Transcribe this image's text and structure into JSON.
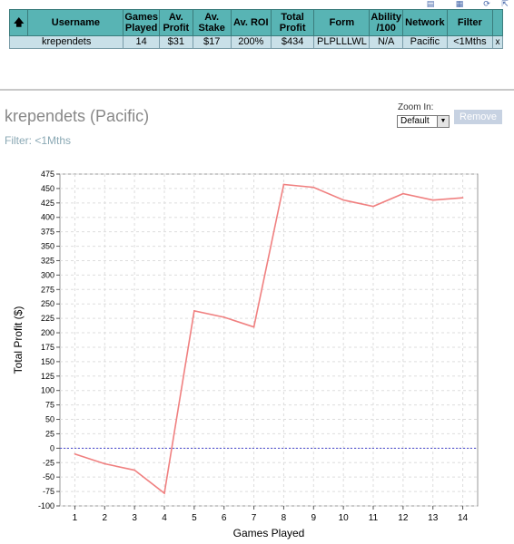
{
  "table": {
    "headers": [
      "",
      "Username",
      "Games Played",
      "Av. Profit",
      "Av. Stake",
      "Av. ROI",
      "Total Profit",
      "Form",
      "Ability /100",
      "Network",
      "Filter",
      ""
    ],
    "row": {
      "username": "krependets",
      "games_played": "14",
      "av_profit": "$31",
      "av_stake": "$17",
      "av_roi": "200%",
      "total_profit": "$434",
      "form": "PLPLLLWL",
      "ability": "N/A",
      "network": "Pacific",
      "filter": "<1Mths",
      "remove": "x"
    }
  },
  "player": {
    "title": "krependets (Pacific)",
    "filter_text": "Filter: <1Mths"
  },
  "zoom": {
    "label": "Zoom In:",
    "selected": "Default",
    "remove_label": "Remove"
  },
  "colors": {
    "header_bg": "#58b4b4",
    "row_bg": "#c9e0e8",
    "line": "#f08080",
    "zero_line": "#4a4ad0"
  },
  "chart_data": {
    "type": "line",
    "xlabel": "Games Played",
    "ylabel": "Total Profit ($)",
    "x": [
      1,
      2,
      3,
      4,
      5,
      6,
      7,
      8,
      9,
      10,
      11,
      12,
      13,
      14
    ],
    "series": [
      {
        "values": [
          -10,
          -27,
          -38,
          -78,
          238,
          227,
          210,
          457,
          452,
          430,
          419,
          441,
          430,
          434
        ]
      }
    ],
    "xlim": [
      0.5,
      14.5
    ],
    "ylim": [
      -100,
      475
    ],
    "yticks": [
      475,
      450,
      425,
      400,
      375,
      350,
      325,
      300,
      275,
      250,
      225,
      200,
      175,
      150,
      125,
      100,
      75,
      50,
      25,
      0,
      -25,
      -50,
      -75,
      -100
    ],
    "xticks": [
      1,
      2,
      3,
      4,
      5,
      6,
      7,
      8,
      9,
      10,
      11,
      12,
      13,
      14
    ],
    "zero_line": 0,
    "grid": true,
    "legend": "none"
  }
}
